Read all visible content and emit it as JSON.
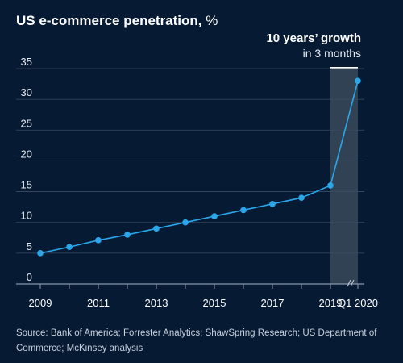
{
  "title": "US e-commerce penetration,",
  "title_unit": "%",
  "callout": {
    "main": "10 years’ growth",
    "sub": "in 3 months"
  },
  "source": "Source: Bank of America; Forrester Analytics; ShawSpring Research; US Department of Commerce; McKinsey analysis",
  "colors": {
    "background": "#061a33",
    "line": "#2aa7ea",
    "grid": "#3b4d63",
    "highlight": "#3a4a5c",
    "callout_bar": "#ffffff"
  },
  "chart_data": {
    "type": "line",
    "title": "US e-commerce penetration, %",
    "x": [
      "2009",
      "2010",
      "2011",
      "2012",
      "2013",
      "2014",
      "2015",
      "2016",
      "2017",
      "2018",
      "2019",
      "Q1 2020"
    ],
    "x_tick_labels": [
      "2009",
      "2011",
      "2013",
      "2015",
      "2017",
      "2019",
      "Q1 2020"
    ],
    "y": [
      5.0,
      6.0,
      7.1,
      8.0,
      9.0,
      10.0,
      11.0,
      12.0,
      13.0,
      14.0,
      16.0,
      33.0
    ],
    "ylim": [
      0,
      35
    ],
    "yticks": [
      0,
      5,
      10,
      15,
      20,
      25,
      30,
      35
    ],
    "grid": "horizontal",
    "highlight_range": [
      "2019",
      "Q1 2020"
    ],
    "axis_break": "between 2019 and Q1 2020"
  }
}
